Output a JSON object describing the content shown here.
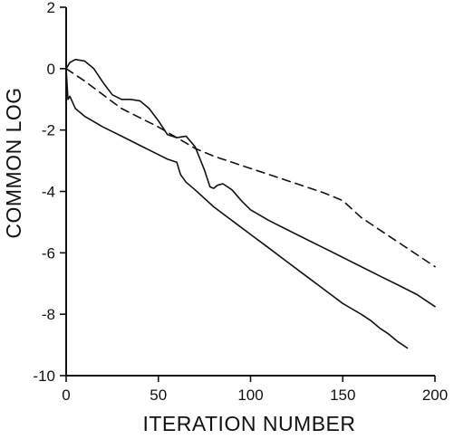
{
  "chart_data": {
    "type": "line",
    "title": "",
    "xlabel": "ITERATION NUMBER",
    "ylabel": "COMMON LOG",
    "xlim": [
      0,
      200
    ],
    "ylim": [
      -10,
      2
    ],
    "xticks": [
      0,
      50,
      100,
      150,
      200
    ],
    "yticks": [
      2,
      0,
      -2,
      -4,
      -6,
      -8,
      -10
    ],
    "xtick_labels": [
      "0",
      "50",
      "100",
      "150",
      "200"
    ],
    "ytick_labels": [
      "2",
      "0",
      "-2",
      "-4",
      "-6",
      "-8",
      "-10"
    ],
    "grid": false,
    "legend": "none",
    "series": [
      {
        "style": "dashed",
        "x": [
          0,
          10,
          20,
          30,
          40,
          50,
          60,
          70,
          80,
          90,
          100,
          110,
          120,
          130,
          140,
          150,
          160,
          170,
          180,
          190,
          200
        ],
        "y": [
          0.0,
          -0.4,
          -0.85,
          -1.3,
          -1.6,
          -1.9,
          -2.25,
          -2.6,
          -2.85,
          -3.05,
          -3.25,
          -3.45,
          -3.65,
          -3.85,
          -4.05,
          -4.3,
          -4.85,
          -5.25,
          -5.65,
          -6.05,
          -6.45
        ]
      },
      {
        "style": "solid",
        "x": [
          0,
          2,
          5,
          10,
          15,
          20,
          25,
          30,
          35,
          40,
          45,
          50,
          55,
          60,
          65,
          70,
          75,
          78,
          80,
          82,
          85,
          90,
          95,
          100,
          110,
          120,
          130,
          140,
          150,
          160,
          170,
          180,
          190,
          200
        ],
        "y": [
          0.0,
          0.2,
          0.3,
          0.25,
          0.0,
          -0.45,
          -0.85,
          -1.0,
          -1.0,
          -1.05,
          -1.3,
          -1.7,
          -2.15,
          -2.25,
          -2.2,
          -2.55,
          -3.3,
          -3.85,
          -3.9,
          -3.8,
          -3.75,
          -3.95,
          -4.3,
          -4.6,
          -4.95,
          -5.25,
          -5.55,
          -5.85,
          -6.15,
          -6.45,
          -6.75,
          -7.05,
          -7.35,
          -7.75
        ]
      },
      {
        "style": "solid",
        "x": [
          0,
          0.5,
          1,
          2,
          5,
          10,
          20,
          30,
          40,
          50,
          55,
          60,
          62,
          65,
          70,
          80,
          90,
          100,
          110,
          120,
          130,
          140,
          150,
          160,
          165,
          170,
          175,
          180,
          185
        ],
        "y": [
          0.0,
          -0.5,
          -1.0,
          -0.9,
          -1.3,
          -1.55,
          -1.9,
          -2.2,
          -2.5,
          -2.8,
          -2.95,
          -3.05,
          -3.45,
          -3.7,
          -3.95,
          -4.5,
          -4.95,
          -5.4,
          -5.85,
          -6.3,
          -6.75,
          -7.2,
          -7.65,
          -8.0,
          -8.2,
          -8.45,
          -8.65,
          -8.9,
          -9.1
        ]
      }
    ]
  }
}
